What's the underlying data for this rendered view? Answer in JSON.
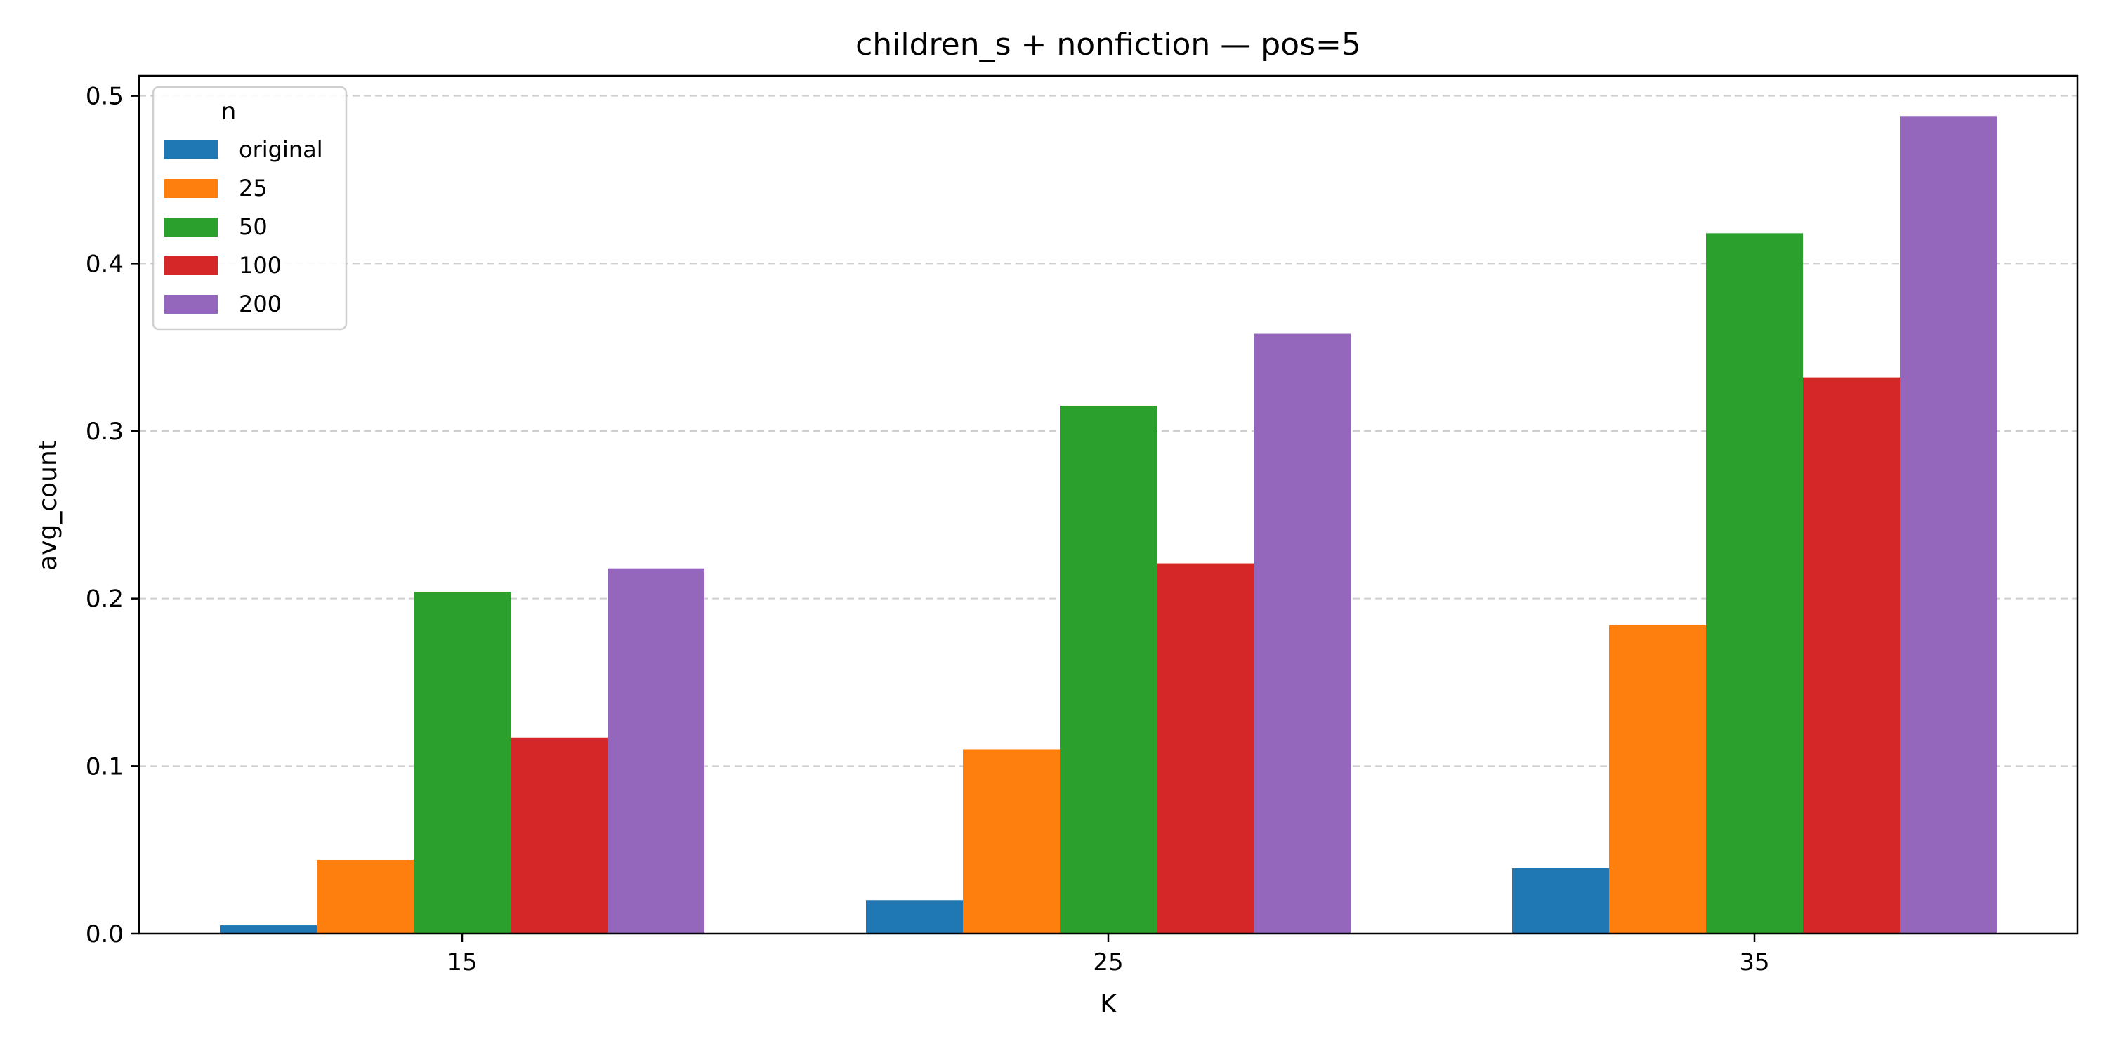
{
  "chart_data": {
    "type": "bar",
    "title": "children_s + nonfiction — pos=5",
    "xlabel": "K",
    "ylabel": "avg_count",
    "categories": [
      "15",
      "25",
      "35"
    ],
    "ylim": [
      0,
      0.512
    ],
    "yticks": [
      "0.0",
      "0.1",
      "0.2",
      "0.3",
      "0.4",
      "0.5"
    ],
    "ytick_values": [
      0,
      0.1,
      0.2,
      0.3,
      0.4,
      0.5
    ],
    "grid": "horizontal dashed",
    "legend": {
      "title": "n",
      "placement": "top-left"
    },
    "series": [
      {
        "name": "original",
        "color": "#1f77b4",
        "values": [
          0.005,
          0.02,
          0.039
        ]
      },
      {
        "name": "25",
        "color": "#ff7f0e",
        "values": [
          0.044,
          0.11,
          0.184
        ]
      },
      {
        "name": "50",
        "color": "#2ca02c",
        "values": [
          0.204,
          0.315,
          0.418
        ]
      },
      {
        "name": "100",
        "color": "#d62728",
        "values": [
          0.117,
          0.221,
          0.332
        ]
      },
      {
        "name": "200",
        "color": "#9467bd",
        "values": [
          0.218,
          0.358,
          0.488
        ]
      }
    ]
  }
}
